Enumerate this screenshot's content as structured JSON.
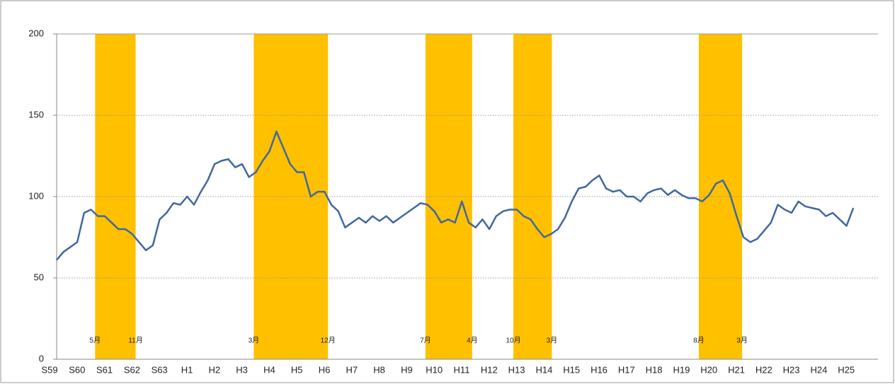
{
  "chart_data": {
    "type": "line",
    "categories": [
      "S59",
      null,
      null,
      null,
      "S60",
      null,
      null,
      null,
      "S61",
      null,
      null,
      null,
      "S62",
      null,
      null,
      null,
      "S63",
      null,
      null,
      null,
      "H1",
      null,
      null,
      null,
      "H2",
      null,
      null,
      null,
      "H3",
      null,
      null,
      null,
      "H4",
      null,
      null,
      null,
      "H5",
      null,
      null,
      null,
      "H6",
      null,
      null,
      null,
      "H7",
      null,
      null,
      null,
      "H8",
      null,
      null,
      null,
      "H9",
      null,
      null,
      null,
      "H10",
      null,
      null,
      null,
      "H11",
      null,
      null,
      null,
      "H12",
      null,
      null,
      null,
      "H13",
      null,
      null,
      null,
      "H14",
      null,
      null,
      null,
      "H15",
      null,
      null,
      null,
      "H16",
      null,
      null,
      null,
      "H17",
      null,
      null,
      null,
      "H18",
      null,
      null,
      null,
      "H19",
      null,
      null,
      null,
      "H20",
      null,
      null,
      null,
      "H21",
      null,
      null,
      null,
      "H22",
      null,
      null,
      null,
      "H23",
      null,
      null,
      null,
      "H24",
      null,
      null,
      null,
      "H25"
    ],
    "series": [
      {
        "color": "#41689e",
        "values": [
          61,
          66,
          69,
          72,
          90,
          92,
          88,
          88,
          84,
          80,
          80,
          77,
          72,
          67,
          70,
          86,
          90,
          96,
          95,
          100,
          95,
          103,
          110,
          120,
          122,
          123,
          118,
          120,
          112,
          115,
          122,
          128,
          140,
          130,
          120,
          115,
          115,
          100,
          103,
          103,
          95,
          91,
          81,
          84,
          87,
          84,
          88,
          85,
          88,
          84,
          87,
          90,
          93,
          96,
          95,
          91,
          84,
          86,
          84,
          97,
          84,
          81,
          86,
          80,
          88,
          91,
          92,
          92,
          88,
          86,
          80,
          75,
          77,
          80,
          87,
          97,
          105,
          106,
          110,
          113,
          105,
          103,
          104,
          100,
          100,
          97,
          102,
          104,
          105,
          101,
          104,
          101,
          99,
          99,
          97,
          101,
          108,
          110,
          102,
          88,
          75,
          72,
          74,
          79,
          84,
          95,
          92,
          90,
          97,
          94,
          93,
          92,
          88,
          90,
          86,
          82,
          93
        ]
      }
    ],
    "shaded_periods": [
      {
        "start": 5.6,
        "end": 11.5,
        "start_label": "5月",
        "end_label": "11月"
      },
      {
        "start": 28.7,
        "end": 39.5,
        "start_label": "3月",
        "end_label": "12月"
      },
      {
        "start": 53.7,
        "end": 60.5,
        "start_label": "7月",
        "end_label": "4月"
      },
      {
        "start": 66.5,
        "end": 72.1,
        "start_label": "10月",
        "end_label": "3月"
      },
      {
        "start": 93.5,
        "end": 99.8,
        "start_label": "8月",
        "end_label": "3月"
      }
    ],
    "shade_color": "#ffc000",
    "ylim": [
      0,
      200
    ],
    "yticks": [
      0,
      50,
      100,
      150,
      200
    ],
    "grid": true
  }
}
